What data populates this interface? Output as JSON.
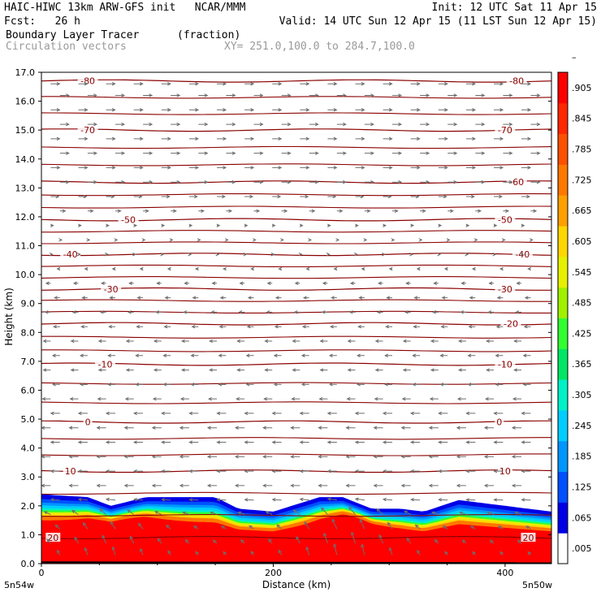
{
  "header": {
    "line1_left": "HAIC-HIWC 13km ARW-GFS init   NCAR/MMM",
    "line1_right": "Init: 12 UTC Sat 11 Apr 15",
    "line2_left": "Fcst:   26 h",
    "line2_right": "Valid: 14 UTC Sun 12 Apr 15 (11 LST Sun 12 Apr 15)",
    "line3_left": "Boundary Layer Tracer",
    "line3_mid": "(fraction)",
    "line4_left": "Circulation vectors",
    "line4_mid": "XY= 251.0,100.0 to 284.7,100.0"
  },
  "chart_data": {
    "type": "heatmap",
    "title": "Boundary Layer Tracer (fraction)",
    "xlabel": "Distance (km)",
    "ylabel": "Height (km)",
    "xlim": [
      0,
      440
    ],
    "ylim": [
      0,
      17
    ],
    "x_ticks": [
      "0",
      "200",
      "400"
    ],
    "x_tick_values": [
      0,
      200,
      400
    ],
    "x_end_labels": [
      "5n54w",
      "5n50w"
    ],
    "y_ticks": [
      "0.0",
      "1.0",
      "2.0",
      "3.0",
      "4.0",
      "5.0",
      "6.0",
      "7.0",
      "8.0",
      "9.0",
      "10.0",
      "11.0",
      "12.0",
      "13.0",
      "14.0",
      "15.0",
      "16.0",
      "17.0"
    ],
    "colorbar": {
      "labels": [
        ".005",
        ".065",
        ".125",
        ".185",
        ".245",
        ".305",
        ".365",
        ".425",
        ".485",
        ".545",
        ".605",
        ".665",
        ".725",
        ".785",
        ".845",
        ".905",
        "–"
      ],
      "colors": [
        "#ffffff",
        "#0000e6",
        "#0050ff",
        "#0096ff",
        "#00cdff",
        "#00f0c8",
        "#00e664",
        "#32ff32",
        "#a0f000",
        "#e6f000",
        "#ffd700",
        "#ffa000",
        "#ff7800",
        "#ff5000",
        "#ff2800",
        "#ff0000"
      ]
    },
    "tracer_top_km": {
      "x": [
        0,
        40,
        60,
        90,
        150,
        170,
        200,
        240,
        260,
        285,
        310,
        330,
        360,
        400,
        440
      ],
      "y": [
        2.4,
        2.3,
        2.0,
        2.3,
        2.3,
        1.9,
        1.8,
        2.3,
        2.3,
        1.9,
        1.9,
        1.8,
        2.2,
        2.0,
        1.8
      ]
    },
    "temperature_contours": [
      {
        "label": "-80",
        "height_km": 16.7
      },
      {
        "label": "-70",
        "height_km": 15.0
      },
      {
        "label": "-60",
        "height_km": 13.2
      },
      {
        "label": "-50",
        "height_km": 11.9
      },
      {
        "label": "-40",
        "height_km": 10.7
      },
      {
        "label": "-30",
        "height_km": 9.5
      },
      {
        "label": "-20",
        "height_km": 8.3
      },
      {
        "label": "-10",
        "height_km": 6.9
      },
      {
        "label": "0",
        "height_km": 4.9
      },
      {
        "label": "10",
        "height_km": 3.2
      },
      {
        "label": "20",
        "height_km": 0.9
      }
    ],
    "contour_label_positions": [
      {
        "label": "-80",
        "x": [
          40,
          410
        ]
      },
      {
        "label": "-70",
        "x": [
          40,
          400
        ]
      },
      {
        "label": "-60",
        "x": [
          410
        ]
      },
      {
        "label": "-50",
        "x": [
          75,
          400
        ]
      },
      {
        "label": "-40",
        "x": [
          25,
          415
        ]
      },
      {
        "label": "-30",
        "x": [
          60,
          400
        ]
      },
      {
        "label": "-20",
        "x": [
          405
        ]
      },
      {
        "label": "-10",
        "x": [
          55,
          400
        ]
      },
      {
        "label": "0",
        "x": [
          40,
          395
        ]
      },
      {
        "label": "10",
        "x": [
          25,
          400
        ]
      },
      {
        "label": "20",
        "x": [
          10,
          420
        ]
      }
    ],
    "vectors": {
      "description": "Circulation vectors",
      "rows_km": [
        16.6,
        16.2,
        15.7,
        15.2,
        14.7,
        14.2,
        13.7,
        13.2,
        12.7,
        12.2,
        11.7,
        11.2,
        10.7,
        10.2,
        9.7,
        9.2,
        8.7,
        8.2,
        7.7,
        7.2,
        6.7,
        6.2,
        5.7,
        5.2,
        4.7,
        4.2,
        3.7,
        3.2,
        2.7,
        2.2,
        1.7,
        1.2,
        0.7,
        0.3
      ],
      "u_relative": [
        1,
        1,
        1,
        1,
        1,
        1,
        1,
        1,
        0.9,
        0.6,
        0.3,
        0.2,
        0.2,
        -0.3,
        -0.5,
        -0.6,
        -0.6,
        -0.7,
        -0.8,
        -0.8,
        -0.8,
        -0.8,
        -0.9,
        -1,
        -1,
        -1,
        -1,
        -1,
        -1,
        -1,
        -0.7,
        -0.5,
        -0.4,
        -0.3
      ],
      "w_relative": [
        0,
        0,
        0,
        0,
        0,
        0,
        0,
        0,
        0,
        0,
        0,
        0,
        0,
        0,
        0,
        0,
        0,
        0,
        0,
        0,
        0,
        0,
        0,
        0,
        0,
        0,
        0,
        0,
        0,
        0.1,
        0.6,
        0.8,
        0.9,
        0.9
      ]
    }
  }
}
